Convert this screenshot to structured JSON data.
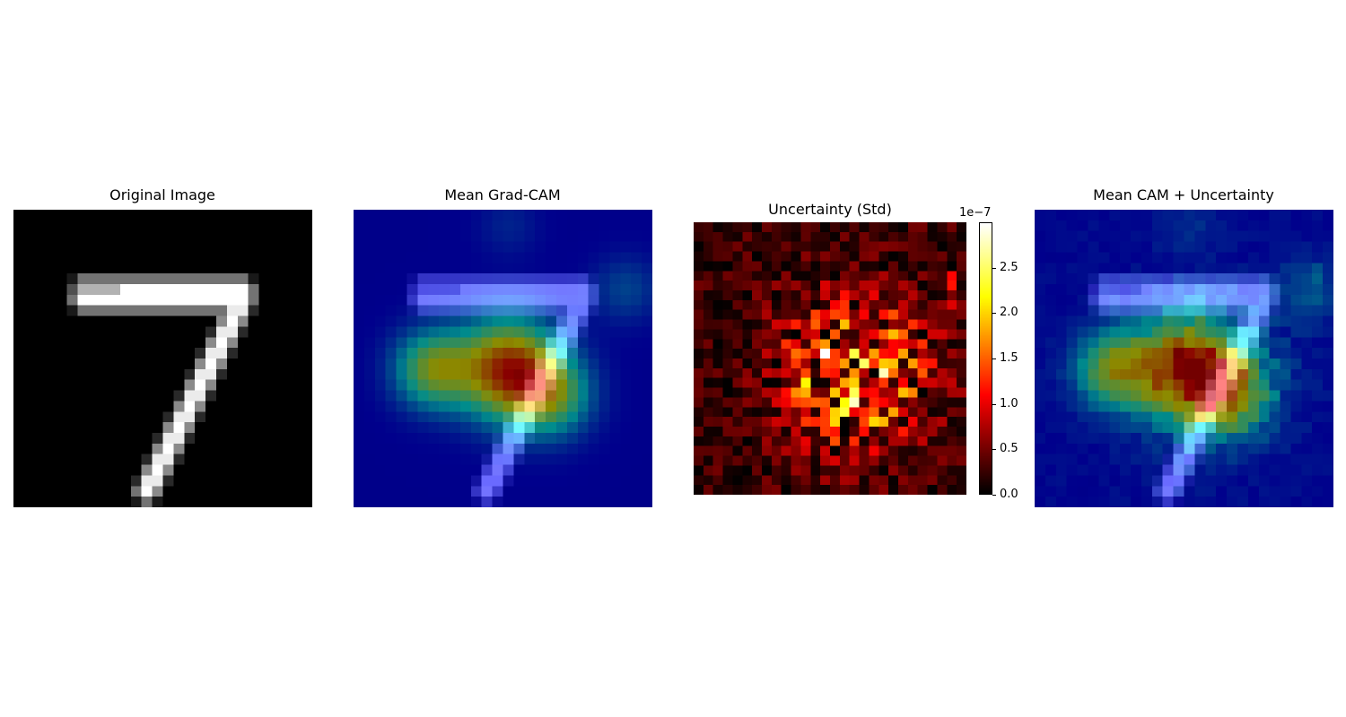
{
  "chart_data": [
    {
      "type": "heatmap",
      "title": "Original Image",
      "colormap": "gray",
      "grid": false
    },
    {
      "type": "heatmap",
      "title": "Mean Grad-CAM",
      "colormap": "jet (overlay)",
      "grid": false
    },
    {
      "type": "heatmap",
      "title": "Uncertainty (Std)",
      "colormap": "hot",
      "grid": false,
      "colorbar": {
        "min": 0.0,
        "max": 3.0,
        "multiplier": "1e−7",
        "ticks": [
          "0.0",
          "0.5",
          "1.0",
          "1.5",
          "2.0",
          "2.5"
        ]
      }
    },
    {
      "type": "heatmap",
      "title": "Mean CAM + Uncertainty",
      "colormap": "jet (overlay)",
      "grid": false
    }
  ]
}
